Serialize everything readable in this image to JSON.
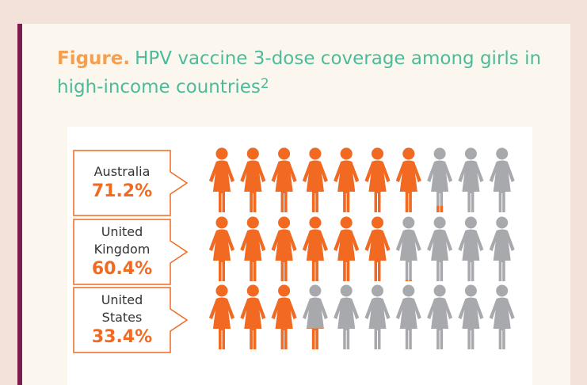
{
  "chart_data": {
    "type": "pictogram",
    "title_label": "Figure.",
    "title": "HPV vaccine 3-dose coverage among girls in high-income countries",
    "title_ref": "2",
    "categories": [
      "Australia",
      "United Kingdom",
      "United States"
    ],
    "values": [
      71.2,
      60.4,
      33.4
    ],
    "value_labels": [
      "71.2%",
      "60.4%",
      "33.4%"
    ],
    "ylim": [
      0,
      100
    ],
    "color": "#f26a21",
    "empty_color": "#a7a9ac"
  }
}
